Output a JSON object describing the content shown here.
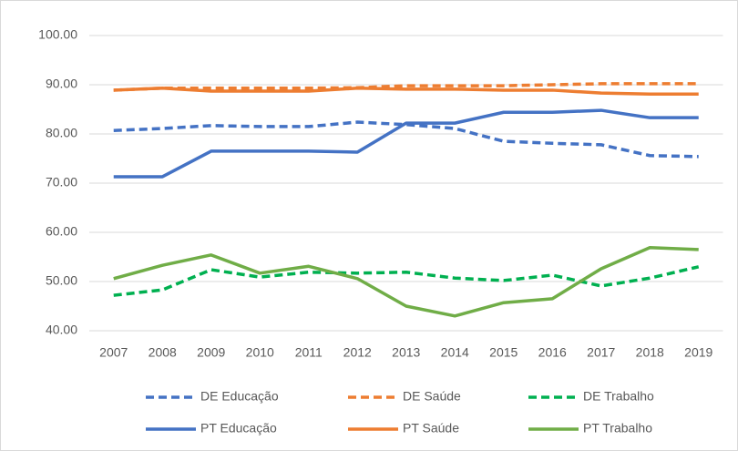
{
  "chart_data": {
    "type": "line",
    "categories": [
      "2007",
      "2008",
      "2009",
      "2010",
      "2011",
      "2012",
      "2013",
      "2014",
      "2015",
      "2016",
      "2017",
      "2018",
      "2019"
    ],
    "series": [
      {
        "name": "DE Educação",
        "color": "#4472c4",
        "dashed": true,
        "values": [
          80.7,
          81.1,
          81.7,
          81.5,
          81.5,
          82.4,
          81.9,
          81.1,
          78.5,
          78.1,
          77.8,
          75.6,
          75.4
        ]
      },
      {
        "name": "DE Saúde",
        "color": "#ed7d31",
        "dashed": true,
        "values": [
          88.9,
          89.3,
          89.3,
          89.3,
          89.3,
          89.4,
          89.8,
          89.8,
          89.8,
          90.0,
          90.2,
          90.2,
          90.2
        ]
      },
      {
        "name": "DE Trabalho",
        "color": "#00b050",
        "dashed": true,
        "values": [
          47.2,
          48.3,
          52.4,
          50.9,
          51.9,
          51.7,
          51.9,
          50.7,
          50.2,
          51.3,
          49.1,
          50.7,
          53.0
        ]
      },
      {
        "name": "PT Educação",
        "color": "#4472c4",
        "dashed": false,
        "values": [
          71.3,
          71.3,
          76.5,
          76.5,
          76.5,
          76.3,
          82.2,
          82.2,
          84.4,
          84.4,
          84.8,
          83.3,
          83.3
        ]
      },
      {
        "name": "PT Saúde",
        "color": "#ed7d31",
        "dashed": false,
        "values": [
          88.9,
          89.3,
          88.7,
          88.7,
          88.7,
          89.3,
          89.1,
          89.1,
          88.9,
          88.9,
          88.3,
          88.1,
          88.1
        ]
      },
      {
        "name": "PT Trabalho",
        "color": "#70ad47",
        "dashed": false,
        "values": [
          50.6,
          53.3,
          55.4,
          51.7,
          53.1,
          50.6,
          45.0,
          43.0,
          45.7,
          46.5,
          52.6,
          56.9,
          56.5
        ]
      }
    ],
    "ylim": [
      40,
      100
    ],
    "yticks": [
      {
        "value": 40,
        "label": "40.00"
      },
      {
        "value": 50,
        "label": "50.00"
      },
      {
        "value": 60,
        "label": "60.00"
      },
      {
        "value": 70,
        "label": "70.00"
      },
      {
        "value": 80,
        "label": "80.00"
      },
      {
        "value": 90,
        "label": "90.00"
      },
      {
        "value": 100,
        "label": "100.00"
      }
    ],
    "grid": true,
    "legend": "bottom"
  }
}
